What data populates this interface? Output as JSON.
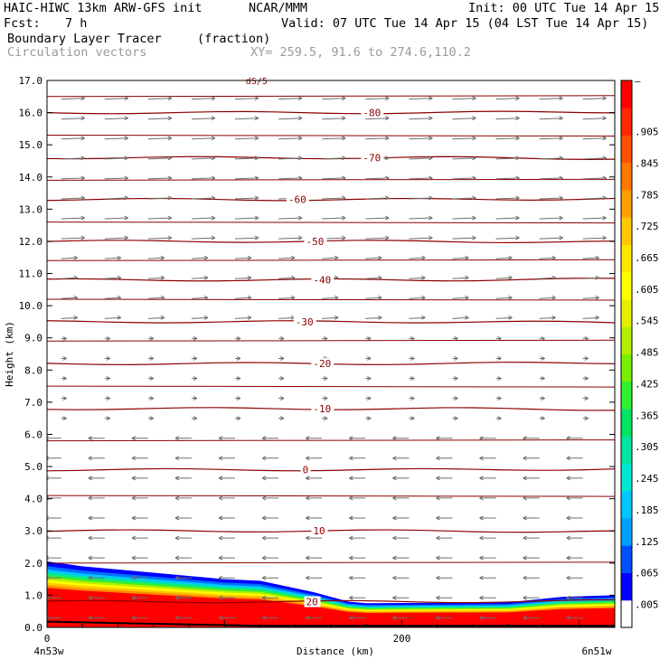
{
  "header": {
    "model": "HAIC-HIWC 13km ARW-GFS init",
    "org": "NCAR/MMM",
    "init": "Init: 00 UTC Tue 14 Apr 15",
    "fcst_label": "Fcst:",
    "fcst_value": "7 h",
    "valid": "Valid: 07 UTC Tue 14 Apr 15 (04 LST Tue 14 Apr 15)",
    "field": "Boundary Layer Tracer",
    "units": "(fraction)",
    "vectors": "Circulation vectors",
    "xy": "XY= 259.5, 91.6 to 274.6,110.2"
  },
  "chart_data": {
    "type": "heatmap",
    "ylabel": "Height (km)",
    "xlabel": "Distance (km)",
    "y_range": [
      0,
      17
    ],
    "y_ticks": [
      "0.0",
      "1.0",
      "2.0",
      "3.0",
      "4.0",
      "5.0",
      "6.0",
      "7.0",
      "8.0",
      "9.0",
      "10.0",
      "11.0",
      "12.0",
      "13.0",
      "14.0",
      "15.0",
      "16.0",
      "17.0"
    ],
    "x_range": [
      0,
      320
    ],
    "x_ticks": [
      {
        "v": 0,
        "label": "0"
      },
      {
        "v": 200,
        "label": "200"
      }
    ],
    "x_left_label": "4n53w",
    "x_right_label": "6n51w",
    "isotherms": [
      {
        "label": "-80",
        "y": 16.0
      },
      {
        "label": "-70",
        "y": 14.6
      },
      {
        "label": "-60",
        "y": 13.3
      },
      {
        "label": "-50",
        "y": 12.0
      },
      {
        "label": "-40",
        "y": 10.8
      },
      {
        "label": "-30",
        "y": 9.5
      },
      {
        "label": "-20",
        "y": 8.2
      },
      {
        "label": "-10",
        "y": 6.8
      },
      {
        "label": "0",
        "y": 4.9
      },
      {
        "label": "10",
        "y": 3.0
      },
      {
        "label": "20",
        "y": 0.8
      }
    ],
    "top_fragment_label": "dS/5",
    "colorbar": {
      "ticks": [
        ".005",
        ".065",
        ".125",
        ".185",
        ".245",
        ".305",
        ".365",
        ".425",
        ".485",
        ".545",
        ".605",
        ".665",
        ".725",
        ".785",
        ".845",
        ".905",
        "–"
      ],
      "colors": [
        "#ffffff",
        "#0000ff",
        "#0050ff",
        "#00a0ff",
        "#00c8ff",
        "#00e6d2",
        "#00e6a0",
        "#00e664",
        "#32f032",
        "#78f000",
        "#b4f000",
        "#e6f000",
        "#ffff00",
        "#ffe600",
        "#ffc800",
        "#ffa000",
        "#ff7800",
        "#ff5000",
        "#ff2800",
        "#ff0000"
      ]
    },
    "tracer_top_km": [
      {
        "x": 0,
        "top": 2.05
      },
      {
        "x": 20,
        "top": 1.9
      },
      {
        "x": 60,
        "top": 1.7
      },
      {
        "x": 100,
        "top": 1.5
      },
      {
        "x": 120,
        "top": 1.45
      },
      {
        "x": 150,
        "top": 1.1
      },
      {
        "x": 170,
        "top": 0.8
      },
      {
        "x": 180,
        "top": 0.75
      },
      {
        "x": 260,
        "top": 0.78
      },
      {
        "x": 290,
        "top": 0.95
      },
      {
        "x": 320,
        "top": 1.0
      }
    ]
  }
}
